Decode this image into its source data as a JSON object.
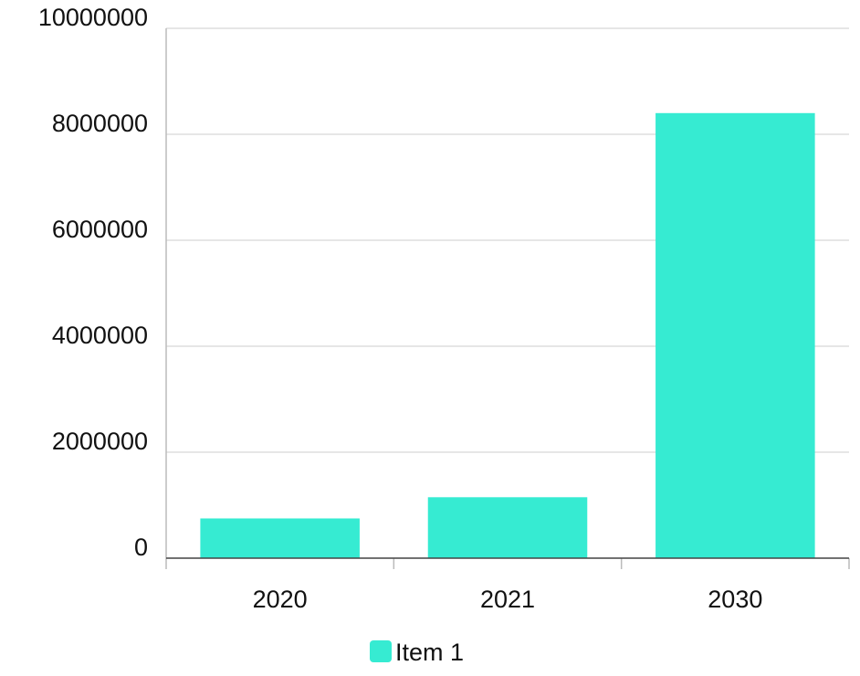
{
  "chart_data": {
    "type": "bar",
    "title": "",
    "xlabel": "",
    "ylabel": "",
    "categories": [
      "2020",
      "2021",
      "2030"
    ],
    "series": [
      {
        "name": "Item 1",
        "color": "#36EBD2",
        "values": [
          750000,
          1150000,
          8400000
        ]
      }
    ],
    "ylim": [
      0,
      10000000
    ],
    "yticks": [
      "0",
      "2000000",
      "4000000",
      "6000000",
      "8000000",
      "10000000"
    ],
    "grid": true,
    "legend_position": "bottom-center"
  }
}
